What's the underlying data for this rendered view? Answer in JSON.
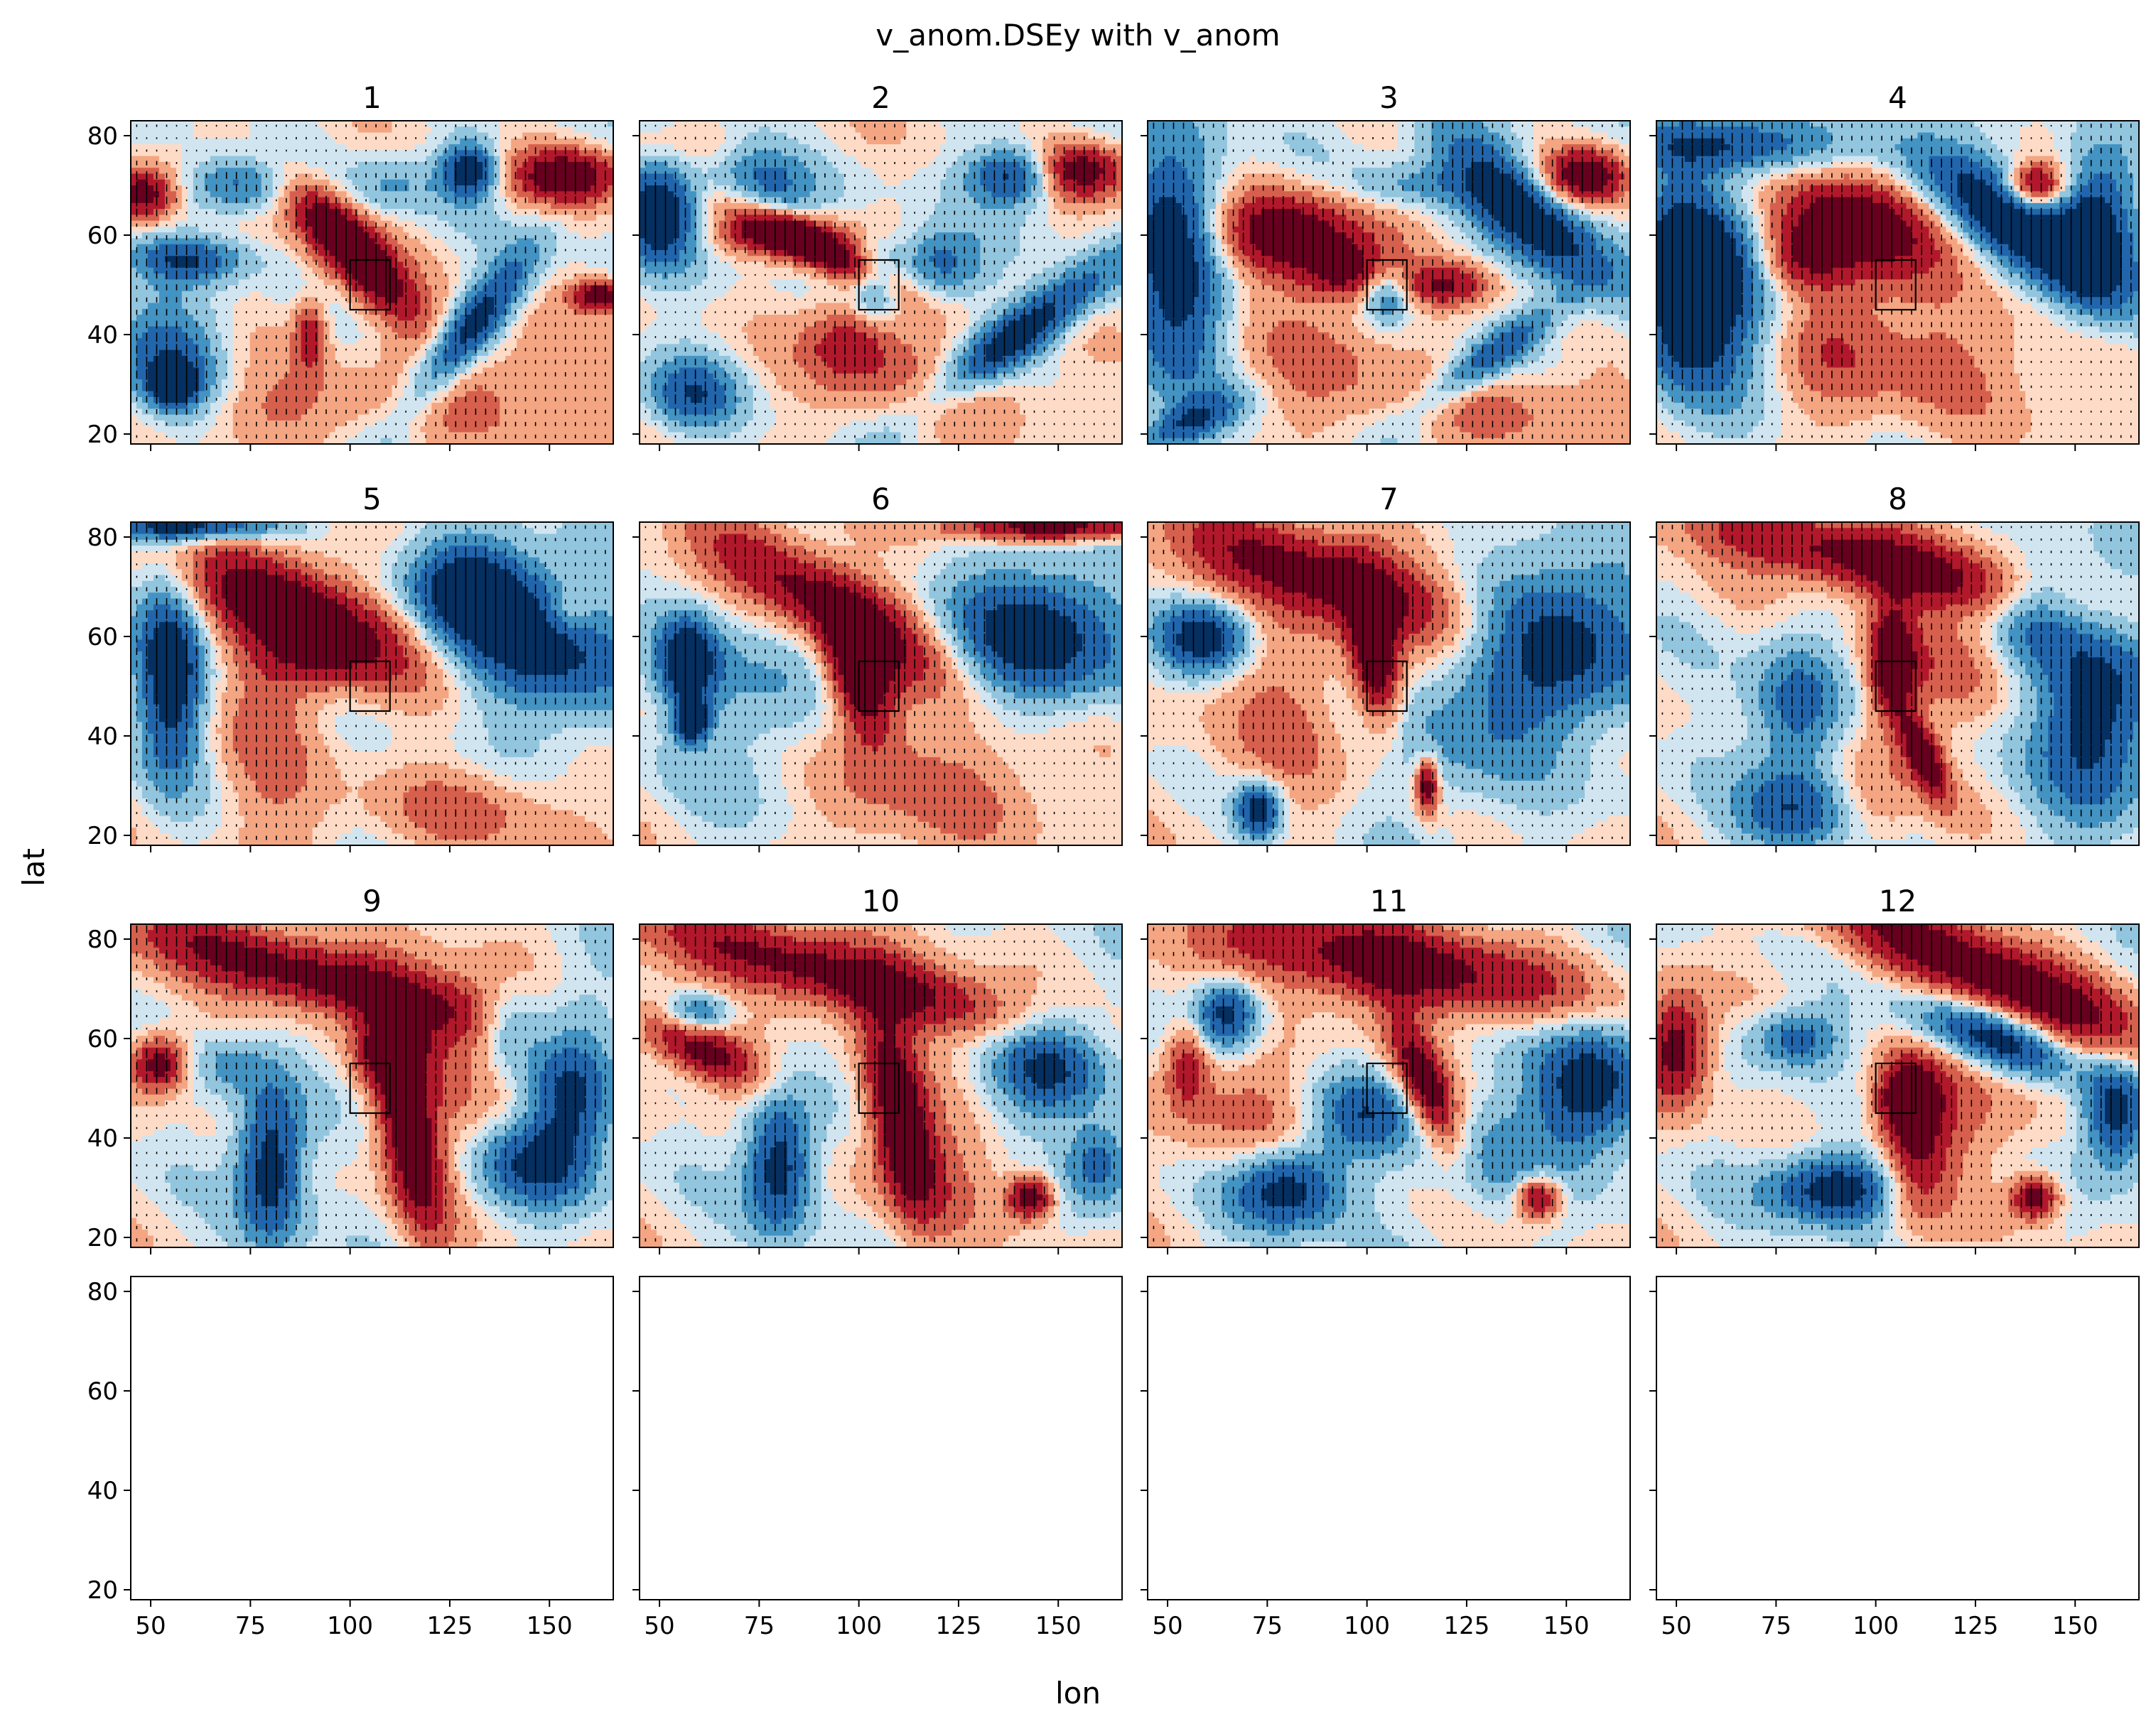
{
  "figure": {
    "suptitle": "v_anom.DSEy with v_anom",
    "xlabel": "lon",
    "ylabel": "lat"
  },
  "chart_data": {
    "type": "heatmap",
    "colormap": "RdBu_r",
    "grid": false,
    "layout": {
      "rows": 4,
      "cols": 4
    },
    "xlim": [
      45,
      166
    ],
    "ylim": [
      18,
      83
    ],
    "xticks": [
      50,
      75,
      100,
      125,
      150
    ],
    "yticks": [
      20,
      40,
      60,
      80
    ],
    "xtick_labels": [
      "50",
      "75",
      "100",
      "125",
      "150"
    ],
    "ytick_labels": [
      "20",
      "40",
      "60",
      "80"
    ],
    "box_region": {
      "lon": [
        100,
        110
      ],
      "lat": [
        45,
        55
      ]
    },
    "panels": [
      {
        "title": "1",
        "has_data": true
      },
      {
        "title": "2",
        "has_data": true
      },
      {
        "title": "3",
        "has_data": true
      },
      {
        "title": "4",
        "has_data": true
      },
      {
        "title": "5",
        "has_data": true
      },
      {
        "title": "6",
        "has_data": true
      },
      {
        "title": "7",
        "has_data": true
      },
      {
        "title": "8",
        "has_data": true
      },
      {
        "title": "9",
        "has_data": true
      },
      {
        "title": "10",
        "has_data": true
      },
      {
        "title": "11",
        "has_data": true
      },
      {
        "title": "12",
        "has_data": true
      },
      {
        "title": "",
        "has_data": false
      },
      {
        "title": "",
        "has_data": false
      },
      {
        "title": "",
        "has_data": false
      },
      {
        "title": "",
        "has_data": false
      }
    ],
    "features": [
      [
        {
          "lon": 100,
          "lat": 57,
          "a": 16,
          "b": 5,
          "rot": -40,
          "v": 3
        },
        {
          "lon": 99,
          "lat": 59,
          "a": 10,
          "b": 3,
          "rot": -40,
          "v": 1
        },
        {
          "lon": 155,
          "lat": 72,
          "a": 10,
          "b": 4,
          "rot": 0,
          "v": 3
        },
        {
          "lon": 48,
          "lat": 68,
          "a": 6,
          "b": 4,
          "rot": 0,
          "v": 3
        },
        {
          "lon": 163,
          "lat": 48,
          "a": 5,
          "b": 2,
          "rot": 0,
          "v": 3
        },
        {
          "lon": 54,
          "lat": 35,
          "a": 10,
          "b": 9,
          "rot": -40,
          "v": -2
        },
        {
          "lon": 56,
          "lat": 30,
          "a": 4,
          "b": 3,
          "rot": 0,
          "v": -3
        },
        {
          "lon": 130,
          "lat": 41,
          "a": 15,
          "b": 4,
          "rot": 45,
          "v": -3
        },
        {
          "lon": 130,
          "lat": 73,
          "a": 5,
          "b": 4,
          "rot": 0,
          "v": -3
        },
        {
          "lon": 72,
          "lat": 70,
          "a": 10,
          "b": 4,
          "rot": 0,
          "v": -2
        },
        {
          "lon": 60,
          "lat": 55,
          "a": 10,
          "b": 3,
          "rot": 0,
          "v": -2
        },
        {
          "lon": 110,
          "lat": 70,
          "a": 8,
          "b": 4,
          "rot": 0,
          "v": -1
        },
        {
          "lon": 90,
          "lat": 40,
          "a": 3,
          "b": 5,
          "rot": 0,
          "v": 2
        },
        {
          "lon": 140,
          "lat": 30,
          "a": 20,
          "b": 10,
          "rot": 0,
          "v": 1
        },
        {
          "lon": 80,
          "lat": 25,
          "a": 20,
          "b": 6,
          "rot": 0,
          "v": 1
        }
      ],
      [
        {
          "lon": 90,
          "lat": 57,
          "a": 16,
          "b": 3,
          "rot": -20,
          "v": 3
        },
        {
          "lon": 80,
          "lat": 60,
          "a": 12,
          "b": 3,
          "rot": 0,
          "v": 2
        },
        {
          "lon": 155,
          "lat": 73,
          "a": 9,
          "b": 4,
          "rot": 0,
          "v": 3
        },
        {
          "lon": 98,
          "lat": 39,
          "a": 8,
          "b": 6,
          "rot": 0,
          "v": 2
        },
        {
          "lon": 50,
          "lat": 65,
          "a": 7,
          "b": 8,
          "rot": 0,
          "v": -3
        },
        {
          "lon": 75,
          "lat": 72,
          "a": 10,
          "b": 6,
          "rot": -20,
          "v": -2
        },
        {
          "lon": 140,
          "lat": 40,
          "a": 20,
          "b": 4,
          "rot": 30,
          "v": -3
        },
        {
          "lon": 120,
          "lat": 54,
          "a": 8,
          "b": 5,
          "rot": 0,
          "v": -2
        },
        {
          "lon": 140,
          "lat": 72,
          "a": 8,
          "b": 4,
          "rot": 0,
          "v": -3
        },
        {
          "lon": 58,
          "lat": 28,
          "a": 8,
          "b": 5,
          "rot": 0,
          "v": -2
        },
        {
          "lon": 104,
          "lat": 50,
          "a": 4,
          "b": 5,
          "rot": 0,
          "v": -2
        },
        {
          "lon": 60,
          "lat": 78,
          "a": 20,
          "b": 4,
          "rot": 0,
          "v": 1
        },
        {
          "lon": 120,
          "lat": 30,
          "a": 20,
          "b": 8,
          "rot": 0,
          "v": 1
        }
      ],
      [
        {
          "lon": 80,
          "lat": 60,
          "a": 15,
          "b": 6,
          "rot": 0,
          "v": 3
        },
        {
          "lon": 95,
          "lat": 52,
          "a": 8,
          "b": 4,
          "rot": 0,
          "v": 2
        },
        {
          "lon": 155,
          "lat": 72,
          "a": 8,
          "b": 4,
          "rot": 0,
          "v": 3
        },
        {
          "lon": 120,
          "lat": 50,
          "a": 8,
          "b": 3,
          "rot": 0,
          "v": 2
        },
        {
          "lon": 52,
          "lat": 55,
          "a": 9,
          "b": 18,
          "rot": 0,
          "v": -3
        },
        {
          "lon": 140,
          "lat": 65,
          "a": 20,
          "b": 6,
          "rot": -35,
          "v": -3
        },
        {
          "lon": 130,
          "lat": 35,
          "a": 15,
          "b": 3,
          "rot": 30,
          "v": -2
        },
        {
          "lon": 55,
          "lat": 22,
          "a": 10,
          "b": 3,
          "rot": 20,
          "v": -2
        },
        {
          "lon": 105,
          "lat": 48,
          "a": 4,
          "b": 4,
          "rot": 0,
          "v": -2
        },
        {
          "lon": 110,
          "lat": 70,
          "a": 10,
          "b": 3,
          "rot": 0,
          "v": -1
        },
        {
          "lon": 90,
          "lat": 35,
          "a": 15,
          "b": 10,
          "rot": 0,
          "v": 1
        },
        {
          "lon": 140,
          "lat": 25,
          "a": 20,
          "b": 6,
          "rot": 0,
          "v": 1
        }
      ],
      [
        {
          "lon": 95,
          "lat": 63,
          "a": 16,
          "b": 7,
          "rot": -10,
          "v": 3
        },
        {
          "lon": 140,
          "lat": 70,
          "a": 5,
          "b": 3,
          "rot": 0,
          "v": 3
        },
        {
          "lon": 80,
          "lat": 55,
          "a": 8,
          "b": 5,
          "rot": 0,
          "v": 2
        },
        {
          "lon": 52,
          "lat": 50,
          "a": 9,
          "b": 14,
          "rot": 0,
          "v": -3
        },
        {
          "lon": 135,
          "lat": 62,
          "a": 25,
          "b": 6,
          "rot": -30,
          "v": -3
        },
        {
          "lon": 155,
          "lat": 62,
          "a": 7,
          "b": 10,
          "rot": 0,
          "v": -3
        },
        {
          "lon": 65,
          "lat": 50,
          "a": 12,
          "b": 15,
          "rot": 0,
          "v": -2
        },
        {
          "lon": 110,
          "lat": 35,
          "a": 30,
          "b": 10,
          "rot": 0,
          "v": 1
        },
        {
          "lon": 90,
          "lat": 45,
          "a": 10,
          "b": 12,
          "rot": 0,
          "v": 1
        },
        {
          "lon": 60,
          "lat": 78,
          "a": 20,
          "b": 4,
          "rot": 0,
          "v": -2
        }
      ],
      [
        {
          "lon": 88,
          "lat": 65,
          "a": 22,
          "b": 7,
          "rot": -20,
          "v": 3
        },
        {
          "lon": 90,
          "lat": 55,
          "a": 10,
          "b": 5,
          "rot": 0,
          "v": 1
        },
        {
          "lon": 155,
          "lat": 65,
          "a": 4,
          "b": 3,
          "rot": 0,
          "v": 1
        },
        {
          "lon": 55,
          "lat": 52,
          "a": 6,
          "b": 14,
          "rot": 0,
          "v": -3
        },
        {
          "lon": 145,
          "lat": 60,
          "a": 18,
          "b": 10,
          "rot": -20,
          "v": -3
        },
        {
          "lon": 130,
          "lat": 70,
          "a": 10,
          "b": 6,
          "rot": 0,
          "v": -2
        },
        {
          "lon": 60,
          "lat": 82,
          "a": 15,
          "b": 2,
          "rot": 0,
          "v": -3
        },
        {
          "lon": 130,
          "lat": 25,
          "a": 20,
          "b": 6,
          "rot": 0,
          "v": 1
        },
        {
          "lon": 80,
          "lat": 40,
          "a": 10,
          "b": 20,
          "rot": 0,
          "v": 1
        }
      ],
      [
        {
          "lon": 90,
          "lat": 68,
          "a": 25,
          "b": 6,
          "rot": -25,
          "v": 3
        },
        {
          "lon": 100,
          "lat": 52,
          "a": 5,
          "b": 9,
          "rot": 20,
          "v": 3
        },
        {
          "lon": 150,
          "lat": 82,
          "a": 20,
          "b": 2,
          "rot": 0,
          "v": 3
        },
        {
          "lon": 145,
          "lat": 60,
          "a": 15,
          "b": 10,
          "rot": 0,
          "v": -3
        },
        {
          "lon": 57,
          "lat": 55,
          "a": 5,
          "b": 6,
          "rot": 0,
          "v": -3
        },
        {
          "lon": 58,
          "lat": 43,
          "a": 3,
          "b": 3,
          "rot": 0,
          "v": -3
        },
        {
          "lon": 75,
          "lat": 50,
          "a": 15,
          "b": 15,
          "rot": 0,
          "v": -1
        },
        {
          "lon": 100,
          "lat": 35,
          "a": 10,
          "b": 15,
          "rot": 0,
          "v": 1
        },
        {
          "lon": 130,
          "lat": 30,
          "a": 15,
          "b": 10,
          "rot": 0,
          "v": 1
        }
      ],
      [
        {
          "lon": 90,
          "lat": 72,
          "a": 30,
          "b": 6,
          "rot": -15,
          "v": 3
        },
        {
          "lon": 102,
          "lat": 55,
          "a": 4,
          "b": 10,
          "rot": 10,
          "v": 3
        },
        {
          "lon": 148,
          "lat": 58,
          "a": 15,
          "b": 12,
          "rot": 0,
          "v": -3
        },
        {
          "lon": 60,
          "lat": 60,
          "a": 8,
          "b": 5,
          "rot": 0,
          "v": -3
        },
        {
          "lon": 73,
          "lat": 25,
          "a": 4,
          "b": 4,
          "rot": 0,
          "v": -3
        },
        {
          "lon": 115,
          "lat": 30,
          "a": 2,
          "b": 4,
          "rot": 0,
          "v": 3
        },
        {
          "lon": 80,
          "lat": 45,
          "a": 15,
          "b": 15,
          "rot": 0,
          "v": 1
        },
        {
          "lon": 120,
          "lat": 40,
          "a": 15,
          "b": 12,
          "rot": 0,
          "v": -1
        }
      ],
      [
        {
          "lon": 100,
          "lat": 75,
          "a": 35,
          "b": 5,
          "rot": -10,
          "v": 3
        },
        {
          "lon": 104,
          "lat": 55,
          "a": 4,
          "b": 8,
          "rot": 0,
          "v": 3
        },
        {
          "lon": 112,
          "lat": 36,
          "a": 3,
          "b": 7,
          "rot": 30,
          "v": 3
        },
        {
          "lon": 155,
          "lat": 45,
          "a": 10,
          "b": 15,
          "rot": 0,
          "v": -3
        },
        {
          "lon": 140,
          "lat": 65,
          "a": 8,
          "b": 8,
          "rot": 0,
          "v": -2
        },
        {
          "lon": 80,
          "lat": 45,
          "a": 8,
          "b": 10,
          "rot": 0,
          "v": -2
        },
        {
          "lon": 80,
          "lat": 25,
          "a": 10,
          "b": 6,
          "rot": 0,
          "v": -2
        },
        {
          "lon": 100,
          "lat": 30,
          "a": 8,
          "b": 10,
          "rot": 0,
          "v": 1
        },
        {
          "lon": 120,
          "lat": 55,
          "a": 15,
          "b": 8,
          "rot": 0,
          "v": 1
        }
      ],
      [
        {
          "lon": 90,
          "lat": 73,
          "a": 40,
          "b": 5,
          "rot": -12,
          "v": 3
        },
        {
          "lon": 115,
          "lat": 40,
          "a": 5,
          "b": 14,
          "rot": 15,
          "v": 3
        },
        {
          "lon": 110,
          "lat": 57,
          "a": 6,
          "b": 4,
          "rot": 0,
          "v": 2
        },
        {
          "lon": 52,
          "lat": 55,
          "a": 5,
          "b": 4,
          "rot": 0,
          "v": 3
        },
        {
          "lon": 80,
          "lat": 35,
          "a": 6,
          "b": 12,
          "rot": 0,
          "v": -3
        },
        {
          "lon": 155,
          "lat": 50,
          "a": 8,
          "b": 12,
          "rot": 0,
          "v": -3
        },
        {
          "lon": 145,
          "lat": 35,
          "a": 10,
          "b": 6,
          "rot": 0,
          "v": -2
        },
        {
          "lon": 140,
          "lat": 62,
          "a": 6,
          "b": 6,
          "rot": 0,
          "v": -2
        },
        {
          "lon": 70,
          "lat": 55,
          "a": 6,
          "b": 4,
          "rot": 0,
          "v": -1
        },
        {
          "lon": 130,
          "lat": 55,
          "a": 15,
          "b": 15,
          "rot": 0,
          "v": 1
        }
      ],
      [
        {
          "lon": 95,
          "lat": 73,
          "a": 40,
          "b": 5,
          "rot": -12,
          "v": 3
        },
        {
          "lon": 110,
          "lat": 45,
          "a": 5,
          "b": 14,
          "rot": 15,
          "v": 3
        },
        {
          "lon": 60,
          "lat": 58,
          "a": 12,
          "b": 4,
          "rot": -20,
          "v": 3
        },
        {
          "lon": 143,
          "lat": 28,
          "a": 4,
          "b": 3,
          "rot": 0,
          "v": 3
        },
        {
          "lon": 148,
          "lat": 55,
          "a": 10,
          "b": 8,
          "rot": 0,
          "v": -3
        },
        {
          "lon": 80,
          "lat": 35,
          "a": 6,
          "b": 10,
          "rot": 0,
          "v": -3
        },
        {
          "lon": 60,
          "lat": 65,
          "a": 6,
          "b": 3,
          "rot": 0,
          "v": -2
        },
        {
          "lon": 160,
          "lat": 35,
          "a": 6,
          "b": 6,
          "rot": 0,
          "v": -2
        },
        {
          "lon": 120,
          "lat": 35,
          "a": 15,
          "b": 10,
          "rot": 0,
          "v": 1
        }
      ],
      [
        {
          "lon": 105,
          "lat": 75,
          "a": 35,
          "b": 6,
          "rot": -8,
          "v": 3
        },
        {
          "lon": 115,
          "lat": 50,
          "a": 4,
          "b": 10,
          "rot": 30,
          "v": 3
        },
        {
          "lon": 143,
          "lat": 28,
          "a": 4,
          "b": 3,
          "rot": 0,
          "v": 3
        },
        {
          "lon": 55,
          "lat": 55,
          "a": 4,
          "b": 6,
          "rot": 0,
          "v": 2
        },
        {
          "lon": 155,
          "lat": 50,
          "a": 10,
          "b": 10,
          "rot": 0,
          "v": -3
        },
        {
          "lon": 80,
          "lat": 30,
          "a": 10,
          "b": 6,
          "rot": 0,
          "v": -3
        },
        {
          "lon": 65,
          "lat": 65,
          "a": 6,
          "b": 5,
          "rot": 0,
          "v": -3
        },
        {
          "lon": 100,
          "lat": 45,
          "a": 10,
          "b": 6,
          "rot": 0,
          "v": -2
        },
        {
          "lon": 130,
          "lat": 35,
          "a": 10,
          "b": 8,
          "rot": 0,
          "v": -1
        },
        {
          "lon": 70,
          "lat": 45,
          "a": 15,
          "b": 10,
          "rot": 0,
          "v": 1
        }
      ],
      [
        {
          "lon": 130,
          "lat": 72,
          "a": 35,
          "b": 6,
          "rot": -20,
          "v": 3
        },
        {
          "lon": 50,
          "lat": 58,
          "a": 6,
          "b": 8,
          "rot": 0,
          "v": 3
        },
        {
          "lon": 108,
          "lat": 48,
          "a": 5,
          "b": 5,
          "rot": 0,
          "v": 3
        },
        {
          "lon": 140,
          "lat": 28,
          "a": 4,
          "b": 3,
          "rot": 0,
          "v": 3
        },
        {
          "lon": 130,
          "lat": 60,
          "a": 15,
          "b": 4,
          "rot": -15,
          "v": -3
        },
        {
          "lon": 90,
          "lat": 30,
          "a": 12,
          "b": 5,
          "rot": 0,
          "v": -3
        },
        {
          "lon": 160,
          "lat": 45,
          "a": 6,
          "b": 8,
          "rot": 0,
          "v": -3
        },
        {
          "lon": 80,
          "lat": 60,
          "a": 8,
          "b": 4,
          "rot": 0,
          "v": -2
        },
        {
          "lon": 110,
          "lat": 35,
          "a": 6,
          "b": 10,
          "rot": 0,
          "v": 2
        },
        {
          "lon": 120,
          "lat": 45,
          "a": 15,
          "b": 10,
          "rot": 0,
          "v": 1
        }
      ]
    ]
  }
}
